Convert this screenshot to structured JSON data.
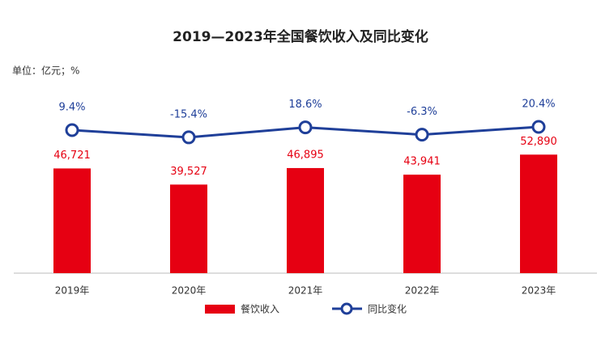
{
  "chart_data": {
    "type": "bar_line",
    "title": "2019—2023年全国餐饮收入及同比变化",
    "unit_label": "单位：亿元；%",
    "categories": [
      "2019年",
      "2020年",
      "2021年",
      "2022年",
      "2023年"
    ],
    "series": [
      {
        "name": "餐饮收入",
        "color": "#e60012",
        "type": "bar",
        "values": [
          46721,
          39527,
          46895,
          43941,
          52890
        ],
        "value_labels": [
          "46,721",
          "39,527",
          "46,895",
          "43,941",
          "52,890"
        ]
      },
      {
        "name": "同比变化",
        "color": "#1f3f99",
        "type": "line",
        "axis": "y2",
        "values": [
          9.4,
          -15.4,
          18.6,
          -6.3,
          20.4
        ],
        "value_labels": [
          "9.4%",
          "-15.4%",
          "18.6%",
          "-6.3%",
          "20.4%"
        ]
      }
    ],
    "ylim": [
      0,
      75000
    ],
    "y2lim": [
      -480,
      95
    ],
    "legend": "bottom"
  }
}
